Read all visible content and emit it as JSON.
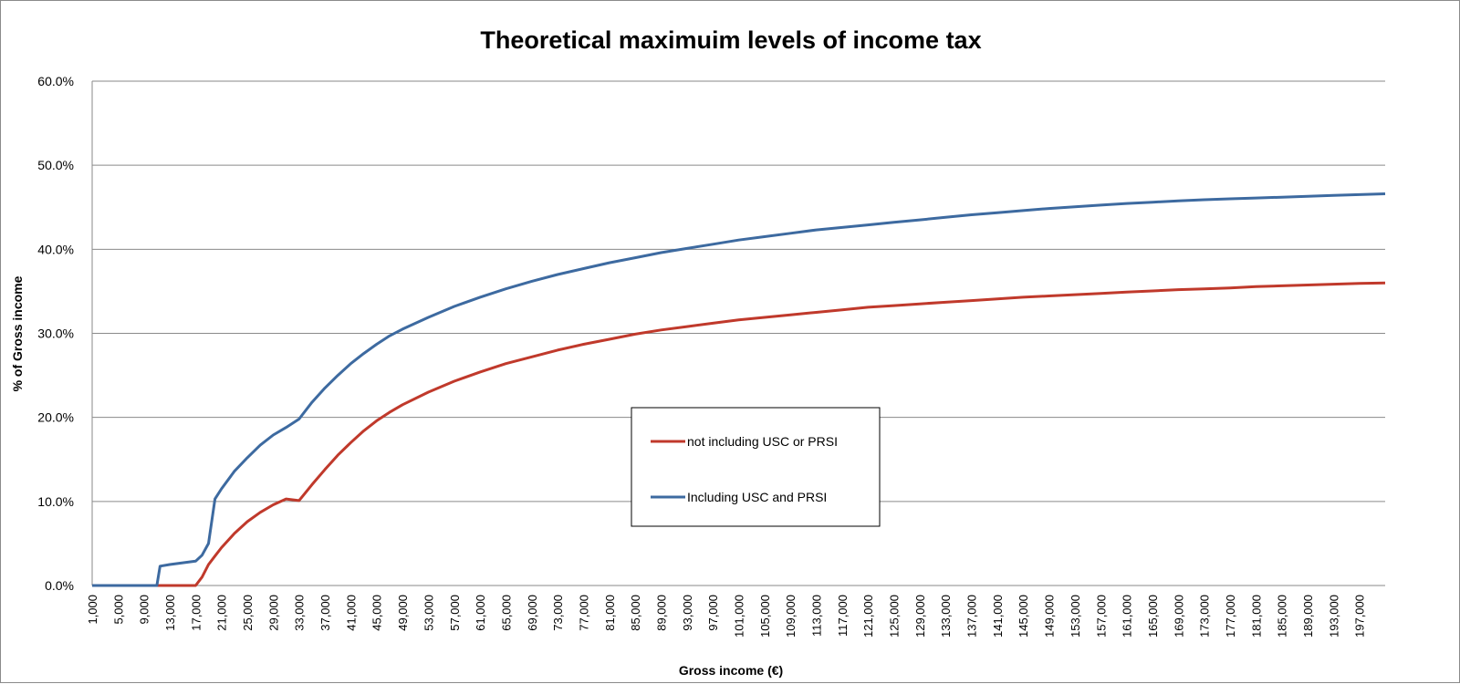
{
  "chart_data": {
    "type": "line",
    "title": "Theoretical maximuim levels of income tax",
    "xlabel": "Gross income (€)",
    "ylabel": "% of Gross income",
    "ylim": [
      0,
      60
    ],
    "yticks": [
      "0.0%",
      "10.0%",
      "20.0%",
      "30.0%",
      "40.0%",
      "50.0%",
      "60.0%"
    ],
    "xlim": [
      1000,
      201000
    ],
    "xticks": [
      "1,000",
      "5,000",
      "9,000",
      "13,000",
      "17,000",
      "21,000",
      "25,000",
      "29,000",
      "33,000",
      "37,000",
      "41,000",
      "45,000",
      "49,000",
      "53,000",
      "57,000",
      "61,000",
      "65,000",
      "69,000",
      "73,000",
      "77,000",
      "81,000",
      "85,000",
      "89,000",
      "93,000",
      "97,000",
      "101,000",
      "105,000",
      "109,000",
      "113,000",
      "117,000",
      "121,000",
      "125,000",
      "129,000",
      "133,000",
      "137,000",
      "141,000",
      "145,000",
      "149,000",
      "153,000",
      "157,000",
      "161,000",
      "165,000",
      "169,000",
      "173,000",
      "177,000",
      "181,000",
      "185,000",
      "189,000",
      "193,000",
      "197,000"
    ],
    "xtick_values": [
      1000,
      5000,
      9000,
      13000,
      17000,
      21000,
      25000,
      29000,
      33000,
      37000,
      41000,
      45000,
      49000,
      53000,
      57000,
      61000,
      65000,
      69000,
      73000,
      77000,
      81000,
      85000,
      89000,
      93000,
      97000,
      101000,
      105000,
      109000,
      113000,
      117000,
      121000,
      125000,
      129000,
      133000,
      137000,
      141000,
      145000,
      149000,
      153000,
      157000,
      161000,
      165000,
      169000,
      173000,
      177000,
      181000,
      185000,
      189000,
      193000,
      197000
    ],
    "grid": "horizontal",
    "legend": "center",
    "series": [
      {
        "name": "not including USC or PRSI",
        "color": "#c0392b",
        "x": [
          1000,
          5000,
          9000,
          13000,
          17000,
          18000,
          19000,
          20000,
          21000,
          23000,
          25000,
          27000,
          29000,
          31000,
          33000,
          35000,
          37000,
          39000,
          41000,
          43000,
          45000,
          47000,
          49000,
          53000,
          57000,
          61000,
          65000,
          69000,
          73000,
          77000,
          81000,
          85000,
          89000,
          93000,
          97000,
          101000,
          105000,
          109000,
          113000,
          117000,
          121000,
          125000,
          129000,
          133000,
          137000,
          141000,
          145000,
          149000,
          153000,
          157000,
          161000,
          165000,
          169000,
          173000,
          177000,
          181000,
          185000,
          189000,
          193000,
          197000,
          201000
        ],
        "y": [
          0,
          0,
          0,
          0,
          0,
          1,
          2.5,
          3.5,
          4.5,
          6.2,
          7.6,
          8.7,
          9.6,
          10.3,
          10.1,
          12.0,
          13.8,
          15.5,
          17.0,
          18.4,
          19.6,
          20.6,
          21.5,
          23.0,
          24.3,
          25.4,
          26.4,
          27.2,
          28.0,
          28.7,
          29.3,
          29.9,
          30.4,
          30.8,
          31.2,
          31.6,
          31.9,
          32.2,
          32.5,
          32.8,
          33.1,
          33.3,
          33.5,
          33.7,
          33.9,
          34.1,
          34.3,
          34.45,
          34.6,
          34.75,
          34.9,
          35.05,
          35.2,
          35.3,
          35.4,
          35.55,
          35.65,
          35.75,
          35.85,
          35.95,
          36.0
        ]
      },
      {
        "name": "Including USC and PRSI",
        "color": "#3d6aa0",
        "x": [
          1000,
          5000,
          9000,
          11000,
          11500,
          13000,
          15000,
          17000,
          18000,
          19000,
          20000,
          21000,
          23000,
          25000,
          27000,
          29000,
          31000,
          33000,
          35000,
          37000,
          39000,
          41000,
          43000,
          45000,
          47000,
          49000,
          53000,
          57000,
          61000,
          65000,
          69000,
          73000,
          77000,
          81000,
          85000,
          89000,
          93000,
          97000,
          101000,
          105000,
          109000,
          113000,
          117000,
          121000,
          125000,
          129000,
          133000,
          137000,
          141000,
          145000,
          149000,
          153000,
          157000,
          161000,
          165000,
          169000,
          173000,
          177000,
          181000,
          185000,
          189000,
          193000,
          197000,
          201000
        ],
        "y": [
          0,
          0,
          0,
          0,
          2.3,
          2.5,
          2.7,
          2.9,
          3.6,
          5.0,
          10.3,
          11.5,
          13.6,
          15.2,
          16.7,
          17.9,
          18.8,
          19.8,
          21.8,
          23.5,
          25.0,
          26.4,
          27.6,
          28.7,
          29.7,
          30.5,
          31.9,
          33.2,
          34.3,
          35.3,
          36.2,
          37.0,
          37.7,
          38.4,
          39.0,
          39.6,
          40.1,
          40.6,
          41.1,
          41.5,
          41.9,
          42.3,
          42.6,
          42.9,
          43.2,
          43.5,
          43.8,
          44.1,
          44.35,
          44.6,
          44.85,
          45.05,
          45.25,
          45.45,
          45.6,
          45.75,
          45.9,
          46.0,
          46.1,
          46.2,
          46.3,
          46.4,
          46.5,
          46.6
        ]
      }
    ]
  }
}
